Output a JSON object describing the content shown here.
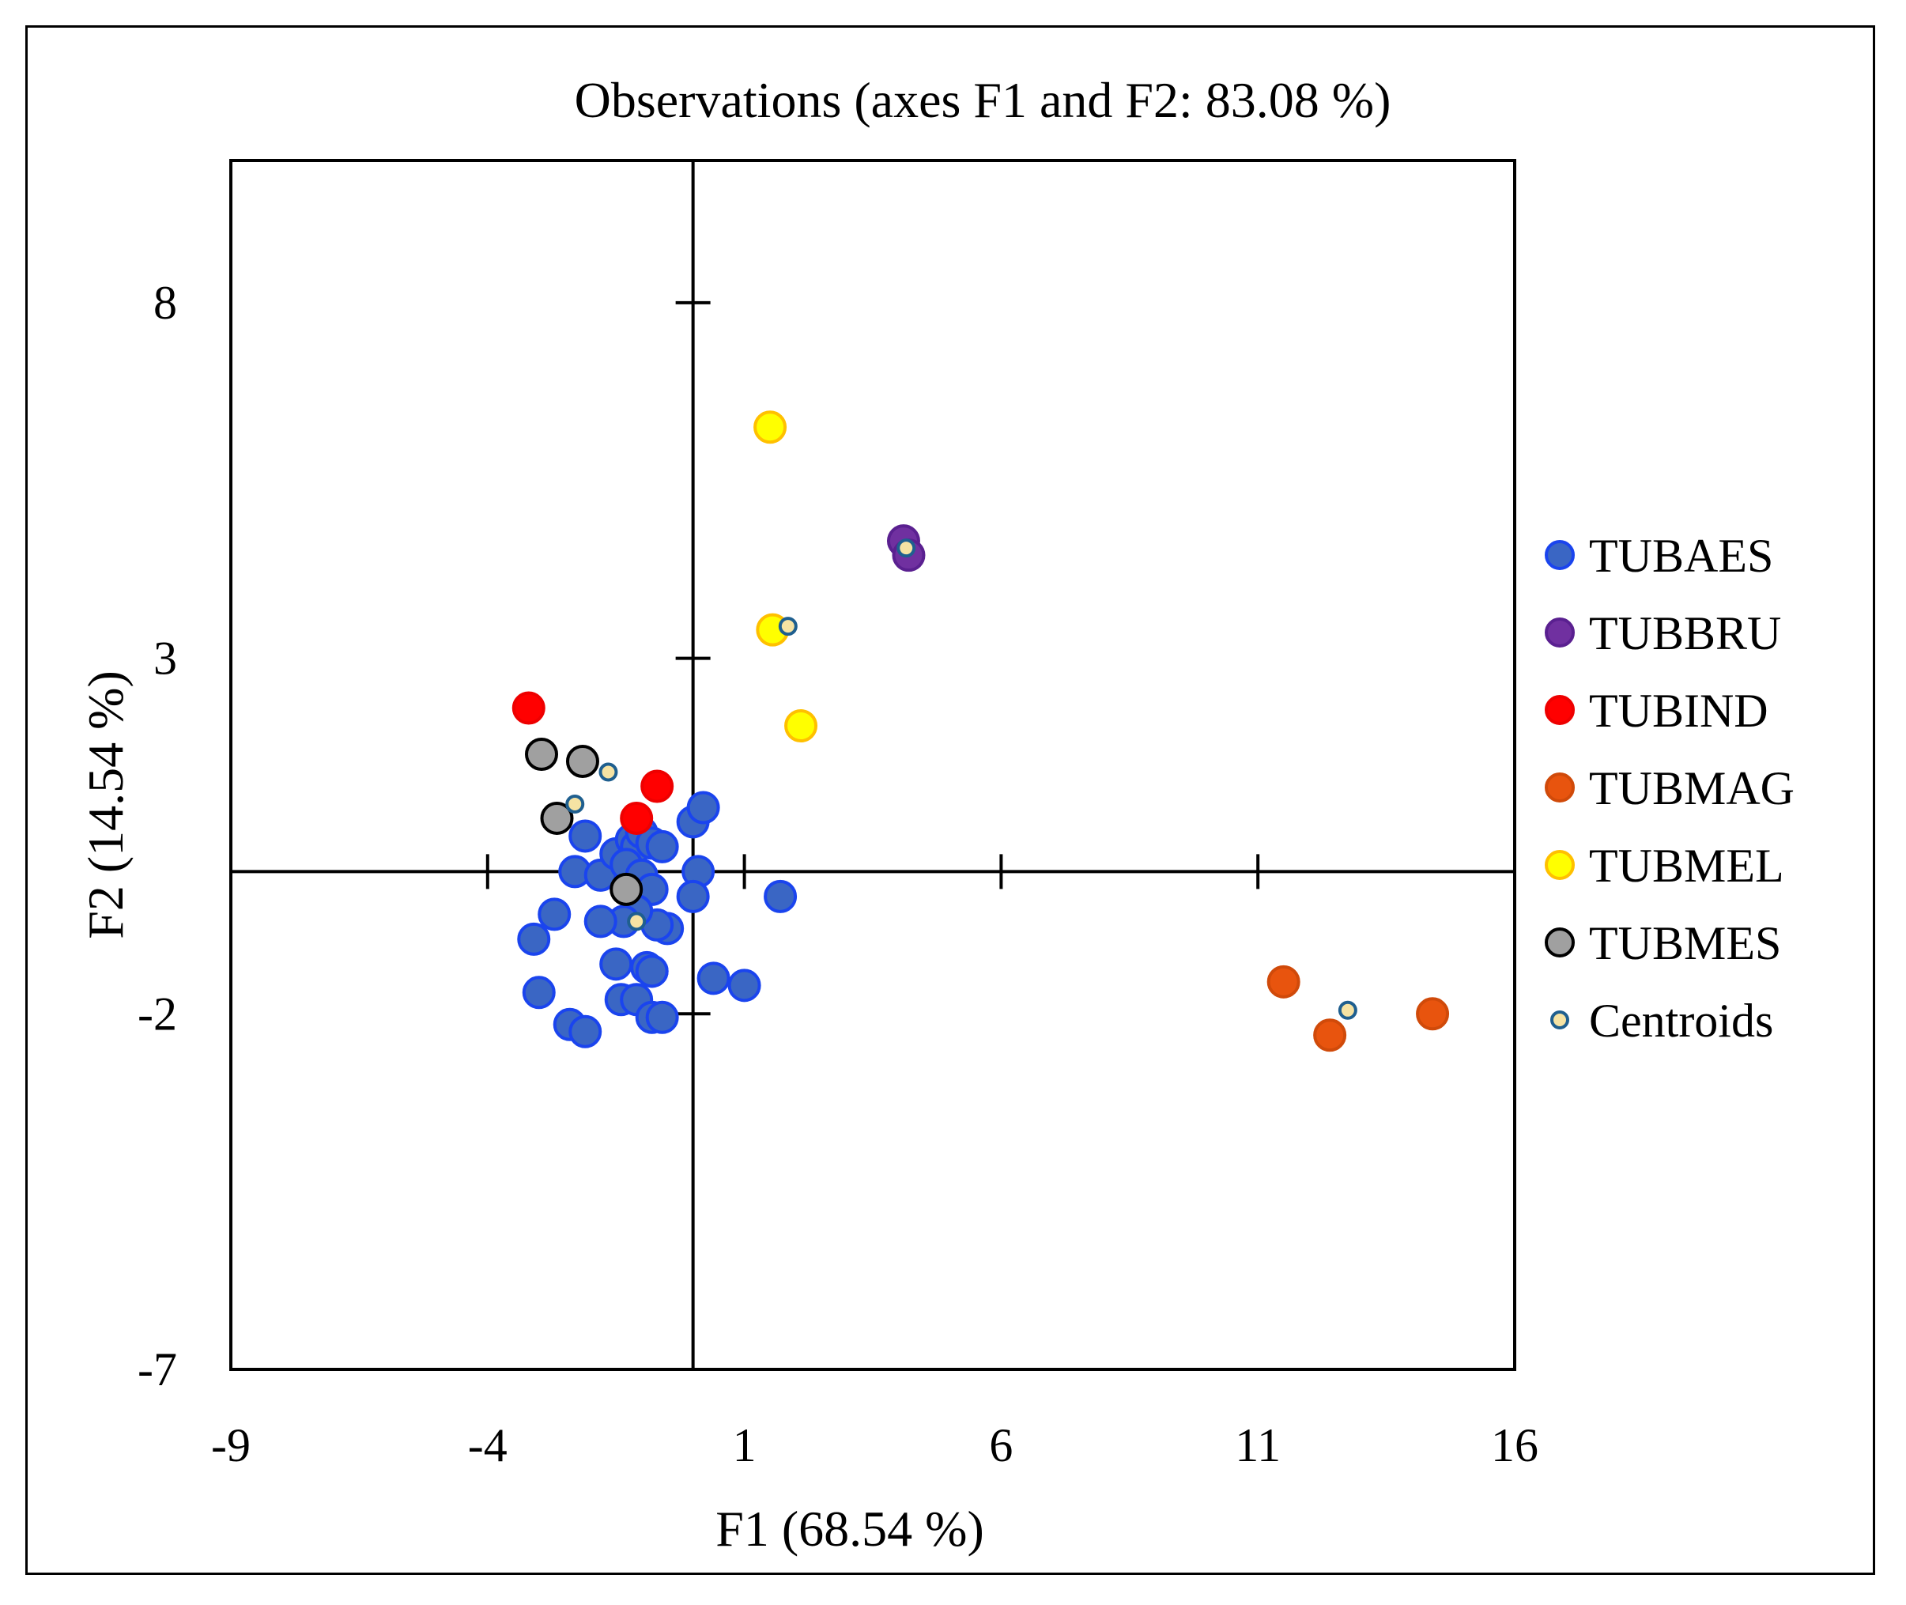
{
  "chart_data": {
    "type": "scatter",
    "title": "Observations (axes F1 and F2: 83.08 %)",
    "xlabel": "F1 (68.54 %)",
    "ylabel": "F2 (14.54 %)",
    "xlim": [
      -9,
      16
    ],
    "ylim": [
      -7,
      10
    ],
    "xticks": [
      -9,
      -4,
      1,
      6,
      11,
      16
    ],
    "yticks": [
      -7,
      -2,
      3,
      8
    ],
    "xtick_labels": [
      "-9",
      "-4",
      "1",
      "6",
      "11",
      "16"
    ],
    "ytick_labels": [
      "-7",
      "-2",
      "3",
      "8"
    ],
    "grid": false,
    "legend_position": "right",
    "series": [
      {
        "name": "TUBAES",
        "color": "#3a66c4",
        "edge": "#1a44ee",
        "points": [
          [
            -2.1,
            0.5
          ],
          [
            -2.3,
            0.0
          ],
          [
            -1.8,
            -0.05
          ],
          [
            -1.5,
            0.25
          ],
          [
            -1.2,
            0.45
          ],
          [
            -1.1,
            0.35
          ],
          [
            -1.0,
            0.55
          ],
          [
            -0.8,
            0.4
          ],
          [
            -0.6,
            0.35
          ],
          [
            -1.3,
            0.1
          ],
          [
            -1.0,
            -0.05
          ],
          [
            -0.8,
            -0.25
          ],
          [
            -0.5,
            -0.8
          ],
          [
            -0.7,
            -0.75
          ],
          [
            -1.1,
            -0.55
          ],
          [
            -1.35,
            -0.7
          ],
          [
            -1.8,
            -0.7
          ],
          [
            -2.7,
            -0.6
          ],
          [
            -3.1,
            -0.95
          ],
          [
            -1.5,
            -1.3
          ],
          [
            -0.8,
            -1.4
          ],
          [
            -0.9,
            -1.35
          ],
          [
            0.0,
            0.7
          ],
          [
            0.2,
            0.9
          ],
          [
            0.1,
            0.0
          ],
          [
            0.0,
            -0.35
          ],
          [
            1.7,
            -0.35
          ],
          [
            0.4,
            -1.5
          ],
          [
            1.0,
            -1.6
          ],
          [
            -3.0,
            -1.7
          ],
          [
            -2.4,
            -2.15
          ],
          [
            -2.1,
            -2.25
          ],
          [
            -1.4,
            -1.8
          ],
          [
            -1.1,
            -1.8
          ],
          [
            -0.8,
            -2.05
          ],
          [
            -0.6,
            -2.05
          ],
          [
            -0.8,
            -1.4
          ]
        ]
      },
      {
        "name": "TUBBRU",
        "color": "#7030a0",
        "edge": "#5a2090",
        "points": [
          [
            4.1,
            4.65
          ],
          [
            4.2,
            4.45
          ]
        ]
      },
      {
        "name": "TUBIND",
        "color": "#ff0000",
        "edge": "#ee0000",
        "points": [
          [
            -3.2,
            2.3
          ],
          [
            -0.7,
            1.2
          ],
          [
            -1.1,
            0.75
          ]
        ]
      },
      {
        "name": "TUBMAG",
        "color": "#e8540e",
        "edge": "#d04a0a",
        "points": [
          [
            11.5,
            -1.55
          ],
          [
            12.4,
            -2.3
          ],
          [
            14.4,
            -2.0
          ]
        ]
      },
      {
        "name": "TUBMEL",
        "color": "#ffff00",
        "edge": "#ffc000",
        "points": [
          [
            1.5,
            6.25
          ],
          [
            1.55,
            3.4
          ],
          [
            2.1,
            2.05
          ]
        ]
      },
      {
        "name": "TUBMES",
        "color": "#a0a0a0",
        "edge": "#000000",
        "points": [
          [
            -2.95,
            1.65
          ],
          [
            -2.15,
            1.55
          ],
          [
            -2.65,
            0.75
          ],
          [
            -1.3,
            -0.25
          ]
        ]
      },
      {
        "name": "Centroids",
        "color": "#f6e3a3",
        "edge": "#1f5f8f",
        "points": [
          [
            4.15,
            4.55
          ],
          [
            12.75,
            -1.95
          ],
          [
            1.85,
            3.45
          ],
          [
            -1.65,
            1.4
          ],
          [
            -2.3,
            0.95
          ],
          [
            -1.1,
            -0.7
          ]
        ]
      }
    ]
  }
}
